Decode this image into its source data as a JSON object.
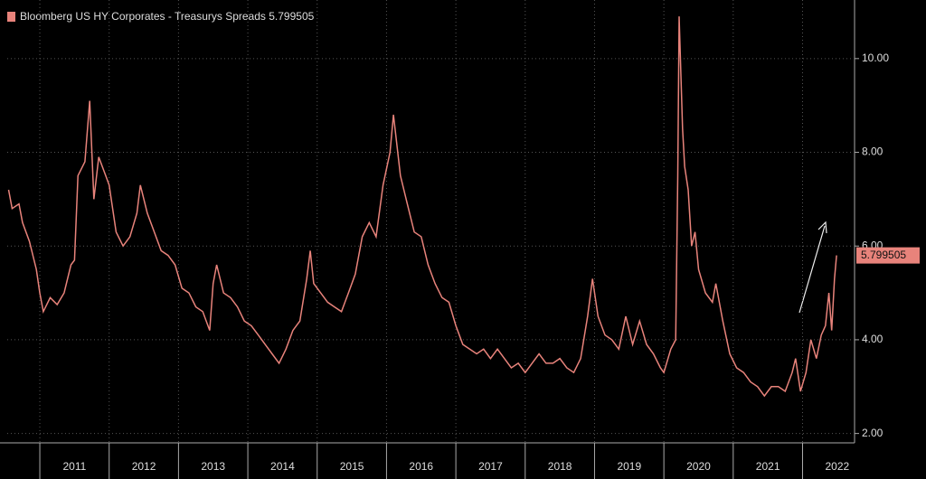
{
  "chart_data": {
    "type": "line",
    "series": [
      {
        "name": "Bloomberg US HY Corporates - Treasurys Spreads",
        "color": "#e8837b",
        "x": [
          2010.55,
          2010.6,
          2010.7,
          2010.75,
          2010.85,
          2010.95,
          2011.0,
          2011.05,
          2011.15,
          2011.25,
          2011.35,
          2011.45,
          2011.5,
          2011.55,
          2011.65,
          2011.72,
          2011.78,
          2011.85,
          2011.95,
          2012.0,
          2012.1,
          2012.2,
          2012.3,
          2012.4,
          2012.45,
          2012.55,
          2012.65,
          2012.75,
          2012.85,
          2012.95,
          2013.05,
          2013.15,
          2013.25,
          2013.35,
          2013.45,
          2013.5,
          2013.55,
          2013.65,
          2013.75,
          2013.85,
          2013.95,
          2014.05,
          2014.15,
          2014.25,
          2014.35,
          2014.45,
          2014.55,
          2014.65,
          2014.75,
          2014.85,
          2014.9,
          2014.95,
          2015.05,
          2015.15,
          2015.25,
          2015.35,
          2015.45,
          2015.55,
          2015.65,
          2015.75,
          2015.85,
          2015.95,
          2016.05,
          2016.1,
          2016.2,
          2016.3,
          2016.4,
          2016.5,
          2016.6,
          2016.7,
          2016.8,
          2016.9,
          2017.0,
          2017.1,
          2017.2,
          2017.3,
          2017.4,
          2017.5,
          2017.6,
          2017.7,
          2017.8,
          2017.9,
          2018.0,
          2018.1,
          2018.2,
          2018.3,
          2018.4,
          2018.5,
          2018.6,
          2018.7,
          2018.8,
          2018.9,
          2018.97,
          2019.05,
          2019.15,
          2019.25,
          2019.35,
          2019.45,
          2019.55,
          2019.65,
          2019.75,
          2019.85,
          2019.95,
          2020.0,
          2020.1,
          2020.17,
          2020.2,
          2020.22,
          2020.27,
          2020.3,
          2020.35,
          2020.4,
          2020.45,
          2020.5,
          2020.6,
          2020.7,
          2020.75,
          2020.85,
          2020.95,
          2021.05,
          2021.15,
          2021.25,
          2021.35,
          2021.45,
          2021.55,
          2021.65,
          2021.75,
          2021.85,
          2021.9,
          2021.97,
          2022.05,
          2022.12,
          2022.2,
          2022.27,
          2022.33,
          2022.38,
          2022.42,
          2022.46,
          2022.49
        ],
        "values": [
          7.2,
          6.8,
          6.9,
          6.5,
          6.1,
          5.5,
          5.0,
          4.6,
          4.9,
          4.75,
          5.0,
          5.6,
          5.7,
          7.5,
          7.8,
          9.1,
          7.0,
          7.9,
          7.5,
          7.3,
          6.3,
          6.0,
          6.2,
          6.7,
          7.3,
          6.7,
          6.3,
          5.9,
          5.8,
          5.6,
          5.1,
          5.0,
          4.7,
          4.6,
          4.2,
          5.2,
          5.6,
          5.0,
          4.9,
          4.7,
          4.4,
          4.3,
          4.1,
          3.9,
          3.7,
          3.5,
          3.8,
          4.2,
          4.4,
          5.3,
          5.9,
          5.2,
          5.0,
          4.8,
          4.7,
          4.6,
          5.0,
          5.4,
          6.2,
          6.5,
          6.2,
          7.3,
          8.0,
          8.8,
          7.5,
          6.9,
          6.3,
          6.2,
          5.6,
          5.2,
          4.9,
          4.8,
          4.3,
          3.9,
          3.8,
          3.7,
          3.8,
          3.6,
          3.8,
          3.6,
          3.4,
          3.5,
          3.3,
          3.5,
          3.7,
          3.5,
          3.5,
          3.6,
          3.4,
          3.3,
          3.6,
          4.5,
          5.3,
          4.5,
          4.1,
          4.0,
          3.8,
          4.5,
          3.9,
          4.4,
          3.9,
          3.7,
          3.4,
          3.3,
          3.8,
          4.0,
          7.5,
          10.9,
          8.5,
          7.7,
          7.2,
          6.0,
          6.3,
          5.5,
          5.0,
          4.8,
          5.2,
          4.4,
          3.7,
          3.4,
          3.3,
          3.1,
          3.0,
          2.8,
          3.0,
          3.0,
          2.9,
          3.3,
          3.6,
          2.9,
          3.3,
          4.0,
          3.6,
          4.1,
          4.3,
          5.0,
          4.2,
          5.3,
          5.799505
        ]
      }
    ],
    "xlim": [
      2010.53,
      2022.75
    ],
    "xticks": [
      {
        "value": 2011.5,
        "label": "2011"
      },
      {
        "value": 2012.5,
        "label": "2012"
      },
      {
        "value": 2013.5,
        "label": "2013"
      },
      {
        "value": 2014.5,
        "label": "2014"
      },
      {
        "value": 2015.5,
        "label": "2015"
      },
      {
        "value": 2016.5,
        "label": "2016"
      },
      {
        "value": 2017.5,
        "label": "2017"
      },
      {
        "value": 2018.5,
        "label": "2018"
      },
      {
        "value": 2019.5,
        "label": "2019"
      },
      {
        "value": 2020.5,
        "label": "2020"
      },
      {
        "value": 2021.5,
        "label": "2021"
      },
      {
        "value": 2022.5,
        "label": "2022"
      }
    ],
    "ylim": [
      1.8,
      11.25
    ],
    "yticks": [
      {
        "value": 2,
        "label": "2.00"
      },
      {
        "value": 4,
        "label": "4.00"
      },
      {
        "value": 6,
        "label": "6.00"
      },
      {
        "value": 8,
        "label": "8.00"
      },
      {
        "value": 10,
        "label": "10.00"
      }
    ],
    "grid": true
  }
}
